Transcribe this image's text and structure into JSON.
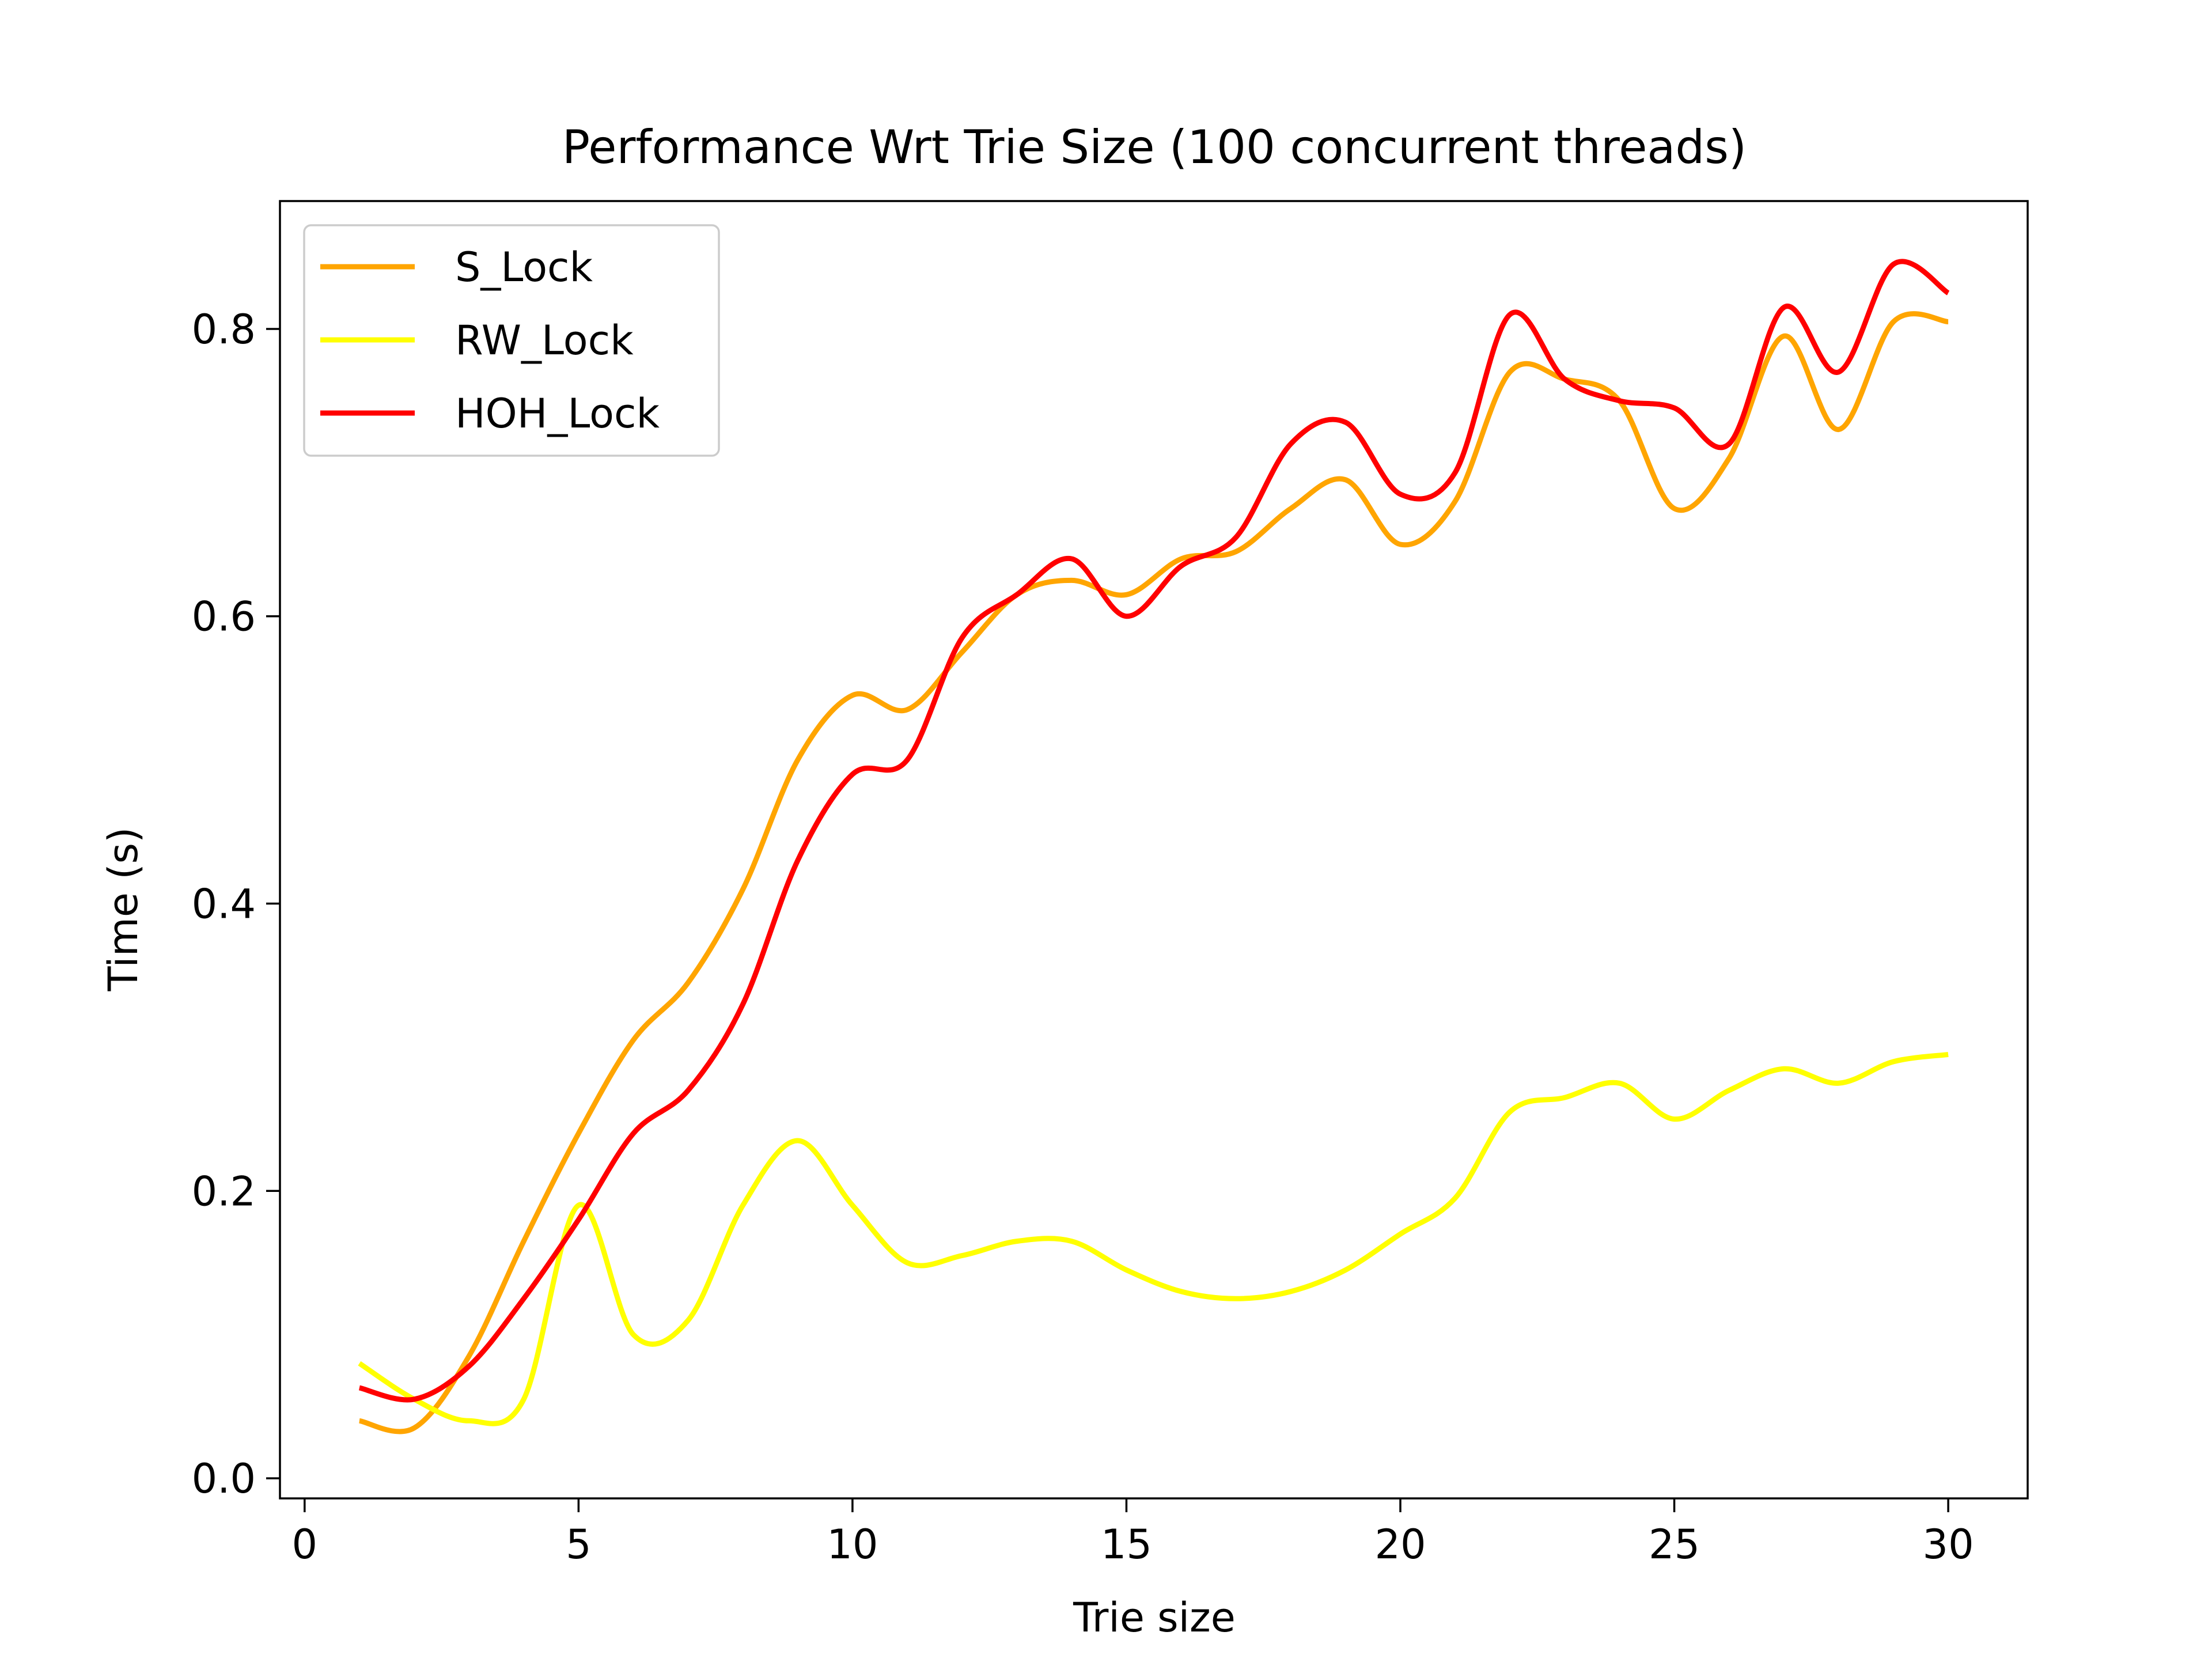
{
  "chart_data": {
    "type": "line",
    "title": "Performance Wrt Trie Size (100 concurrent threads)",
    "xlabel": "Trie size",
    "ylabel": "Time (s)",
    "xlim": [
      -0.45,
      31.45
    ],
    "ylim": [
      -0.014,
      0.889
    ],
    "xticks": [
      0,
      5,
      10,
      15,
      20,
      25,
      30
    ],
    "xtick_labels": [
      "0",
      "5",
      "10",
      "15",
      "20",
      "25",
      "30"
    ],
    "yticks": [
      0.0,
      0.2,
      0.4,
      0.6,
      0.8
    ],
    "ytick_labels": [
      "0.0",
      "0.2",
      "0.4",
      "0.6",
      "0.8"
    ],
    "grid": false,
    "legend_position": "upper-left",
    "x": [
      1,
      2,
      3,
      4,
      5,
      6,
      7,
      8,
      9,
      10,
      11,
      12,
      13,
      14,
      15,
      16,
      17,
      18,
      19,
      20,
      21,
      22,
      23,
      24,
      25,
      26,
      27,
      28,
      29,
      30
    ],
    "series": [
      {
        "name": "S_Lock",
        "color": "#FFA500",
        "values": [
          0.04,
          0.035,
          0.085,
          0.165,
          0.24,
          0.305,
          0.345,
          0.41,
          0.5,
          0.545,
          0.535,
          0.575,
          0.615,
          0.625,
          0.615,
          0.64,
          0.645,
          0.675,
          0.695,
          0.65,
          0.68,
          0.77,
          0.765,
          0.75,
          0.675,
          0.71,
          0.795,
          0.73,
          0.805,
          0.805
        ]
      },
      {
        "name": "RW_Lock",
        "color": "#FFFF00",
        "values": [
          0.08,
          0.055,
          0.04,
          0.055,
          0.19,
          0.1,
          0.11,
          0.19,
          0.235,
          0.19,
          0.15,
          0.155,
          0.165,
          0.165,
          0.145,
          0.13,
          0.125,
          0.13,
          0.145,
          0.17,
          0.195,
          0.255,
          0.265,
          0.275,
          0.25,
          0.27,
          0.285,
          0.275,
          0.29,
          0.295
        ]
      },
      {
        "name": "HOH_Lock",
        "color": "#FF0000",
        "values": [
          0.063,
          0.055,
          0.078,
          0.125,
          0.18,
          0.24,
          0.27,
          0.33,
          0.43,
          0.49,
          0.5,
          0.585,
          0.615,
          0.64,
          0.6,
          0.635,
          0.655,
          0.72,
          0.735,
          0.685,
          0.7,
          0.81,
          0.765,
          0.75,
          0.745,
          0.72,
          0.815,
          0.77,
          0.845,
          0.825
        ]
      }
    ]
  }
}
